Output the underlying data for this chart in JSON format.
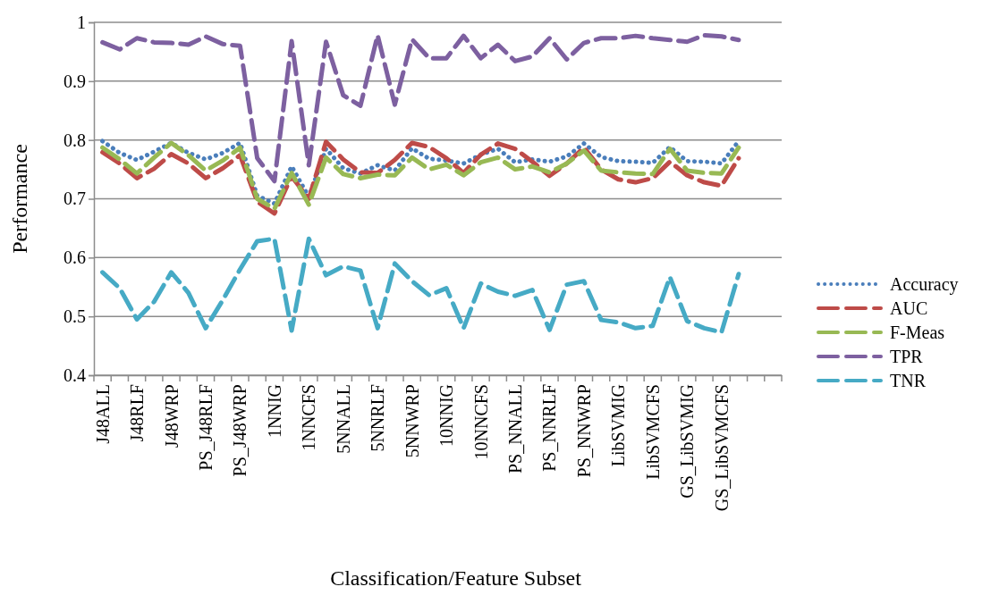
{
  "chart_data": {
    "type": "line",
    "xlabel": "Classification/Feature Subset",
    "ylabel": "Performance",
    "categories": [
      "J48ALL",
      null,
      "J48RLF",
      null,
      "J48WRP",
      null,
      "PS_J48RLF",
      null,
      "PS_J48WRP",
      null,
      "1NNIG",
      null,
      "1NNCFS",
      null,
      "5NNALL",
      null,
      "5NNRLF",
      null,
      "5NNWRP",
      null,
      "10NNIG",
      null,
      "10NNCFS",
      null,
      "PS_NNALL",
      null,
      "PS_NNRLF",
      null,
      "PS_NNWRP",
      null,
      "LibSVMIG",
      null,
      "LibSVMCFS",
      null,
      "GS_LibSVMIG",
      null,
      "GS_LibSVMCFS",
      null,
      null,
      null
    ],
    "ylim": [
      0.4,
      1
    ],
    "yticks": [
      0.4,
      0.5,
      0.6,
      0.7,
      0.8,
      0.9,
      1
    ],
    "grid": "y",
    "legend": "right",
    "marker": "none",
    "series": [
      {
        "name": "Accuracy",
        "color": "#4a7ebb",
        "line_style": "dotted",
        "values": [
          0.798,
          0.778,
          0.766,
          0.78,
          0.795,
          0.778,
          0.767,
          0.778,
          0.795,
          0.705,
          0.692,
          0.755,
          0.703,
          0.785,
          0.752,
          0.743,
          0.757,
          0.748,
          0.786,
          0.768,
          0.765,
          0.76,
          0.775,
          0.785,
          0.762,
          0.767,
          0.763,
          0.772,
          0.794,
          0.771,
          0.764,
          0.763,
          0.761,
          0.788,
          0.764,
          0.763,
          0.76,
          0.798,
          null,
          null
        ]
      },
      {
        "name": "AUC",
        "color": "#be4b48",
        "line_style": "dashed",
        "values": [
          0.779,
          0.76,
          0.735,
          0.751,
          0.776,
          0.76,
          0.735,
          0.752,
          0.774,
          0.695,
          0.675,
          0.738,
          0.7,
          0.797,
          0.767,
          0.745,
          0.744,
          0.766,
          0.795,
          0.788,
          0.769,
          0.744,
          0.775,
          0.794,
          0.785,
          0.763,
          0.739,
          0.76,
          0.787,
          0.75,
          0.733,
          0.728,
          0.735,
          0.763,
          0.74,
          0.728,
          0.722,
          0.769,
          null,
          null
        ]
      },
      {
        "name": "F-Meas",
        "color": "#98b954",
        "line_style": "dashed",
        "values": [
          0.787,
          0.767,
          0.743,
          0.77,
          0.795,
          0.774,
          0.748,
          0.765,
          0.787,
          0.7,
          0.683,
          0.744,
          0.69,
          0.77,
          0.742,
          0.735,
          0.741,
          0.74,
          0.77,
          0.75,
          0.758,
          0.74,
          0.762,
          0.77,
          0.75,
          0.755,
          0.745,
          0.76,
          0.782,
          0.748,
          0.745,
          0.743,
          0.742,
          0.785,
          0.748,
          0.744,
          0.743,
          0.787,
          null,
          null
        ]
      },
      {
        "name": "TPR",
        "color": "#7d60a0",
        "line_style": "dashed",
        "values": [
          0.966,
          0.954,
          0.973,
          0.966,
          0.965,
          0.962,
          0.976,
          0.963,
          0.96,
          0.769,
          0.73,
          0.968,
          0.757,
          0.967,
          0.876,
          0.858,
          0.978,
          0.86,
          0.971,
          0.939,
          0.939,
          0.977,
          0.939,
          0.962,
          0.934,
          0.942,
          0.973,
          0.937,
          0.965,
          0.973,
          0.973,
          0.977,
          0.973,
          0.97,
          0.967,
          0.978,
          0.976,
          0.97,
          null,
          null
        ]
      },
      {
        "name": "TNR",
        "color": "#46aac5",
        "line_style": "dashed",
        "values": [
          0.575,
          0.548,
          0.495,
          0.525,
          0.575,
          0.54,
          0.48,
          0.528,
          0.58,
          0.628,
          0.632,
          0.476,
          0.632,
          0.57,
          0.585,
          0.578,
          0.48,
          0.59,
          0.56,
          0.536,
          0.548,
          0.48,
          0.556,
          0.542,
          0.535,
          0.545,
          0.477,
          0.554,
          0.56,
          0.494,
          0.49,
          0.48,
          0.484,
          0.567,
          0.492,
          0.48,
          0.473,
          0.572,
          null,
          null
        ]
      }
    ]
  }
}
